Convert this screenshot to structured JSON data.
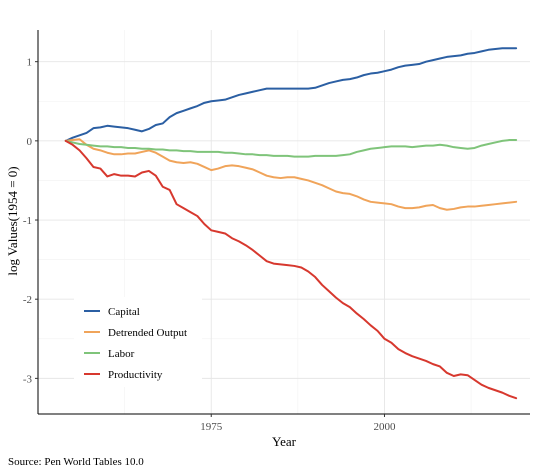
{
  "chart_data": {
    "type": "line",
    "title": "",
    "xlabel": "Year",
    "ylabel": "log Values(1954 = 0)",
    "caption": "Source: Pen World Tables 10.0",
    "xlim": [
      1950,
      2021
    ],
    "ylim": [
      -3.45,
      1.4
    ],
    "x_ticks": [
      1975,
      2000
    ],
    "y_ticks": [
      -3,
      -2,
      -1,
      0,
      1
    ],
    "grid": true,
    "legend_position": "bottom-left",
    "series": [
      {
        "name": "Capital",
        "color": "#2b5fa3",
        "x": [
          1954,
          1955,
          1956,
          1957,
          1958,
          1959,
          1960,
          1961,
          1962,
          1963,
          1964,
          1965,
          1966,
          1967,
          1968,
          1969,
          1970,
          1971,
          1972,
          1973,
          1974,
          1975,
          1976,
          1977,
          1978,
          1979,
          1980,
          1981,
          1982,
          1983,
          1984,
          1985,
          1986,
          1987,
          1988,
          1989,
          1990,
          1991,
          1992,
          1993,
          1994,
          1995,
          1996,
          1997,
          1998,
          1999,
          2000,
          2001,
          2002,
          2003,
          2004,
          2005,
          2006,
          2007,
          2008,
          2009,
          2010,
          2011,
          2012,
          2013,
          2014,
          2015,
          2016,
          2017,
          2018,
          2019
        ],
        "y": [
          0,
          0.04,
          0.07,
          0.1,
          0.16,
          0.17,
          0.19,
          0.18,
          0.17,
          0.16,
          0.14,
          0.12,
          0.15,
          0.2,
          0.22,
          0.3,
          0.35,
          0.38,
          0.41,
          0.44,
          0.48,
          0.5,
          0.51,
          0.52,
          0.55,
          0.58,
          0.6,
          0.62,
          0.64,
          0.66,
          0.66,
          0.66,
          0.66,
          0.66,
          0.66,
          0.66,
          0.67,
          0.7,
          0.73,
          0.75,
          0.77,
          0.78,
          0.8,
          0.83,
          0.85,
          0.86,
          0.88,
          0.9,
          0.93,
          0.95,
          0.96,
          0.97,
          1.0,
          1.02,
          1.04,
          1.06,
          1.07,
          1.08,
          1.1,
          1.11,
          1.13,
          1.15,
          1.16,
          1.17,
          1.17,
          1.17
        ]
      },
      {
        "name": "Detrended Output",
        "color": "#f0a45a",
        "x": [
          1954,
          1955,
          1956,
          1957,
          1958,
          1959,
          1960,
          1961,
          1962,
          1963,
          1964,
          1965,
          1966,
          1967,
          1968,
          1969,
          1970,
          1971,
          1972,
          1973,
          1974,
          1975,
          1976,
          1977,
          1978,
          1979,
          1980,
          1981,
          1982,
          1983,
          1984,
          1985,
          1986,
          1987,
          1988,
          1989,
          1990,
          1991,
          1992,
          1993,
          1994,
          1995,
          1996,
          1997,
          1998,
          1999,
          2000,
          2001,
          2002,
          2003,
          2004,
          2005,
          2006,
          2007,
          2008,
          2009,
          2010,
          2011,
          2012,
          2013,
          2014,
          2015,
          2016,
          2017,
          2018,
          2019
        ],
        "y": [
          0,
          0.01,
          0.02,
          -0.05,
          -0.1,
          -0.12,
          -0.15,
          -0.17,
          -0.17,
          -0.16,
          -0.16,
          -0.14,
          -0.12,
          -0.15,
          -0.2,
          -0.25,
          -0.27,
          -0.28,
          -0.27,
          -0.29,
          -0.33,
          -0.37,
          -0.35,
          -0.32,
          -0.31,
          -0.32,
          -0.34,
          -0.36,
          -0.4,
          -0.44,
          -0.46,
          -0.47,
          -0.46,
          -0.46,
          -0.48,
          -0.5,
          -0.53,
          -0.56,
          -0.6,
          -0.64,
          -0.66,
          -0.67,
          -0.7,
          -0.74,
          -0.77,
          -0.78,
          -0.79,
          -0.8,
          -0.83,
          -0.85,
          -0.85,
          -0.84,
          -0.82,
          -0.81,
          -0.85,
          -0.87,
          -0.86,
          -0.84,
          -0.83,
          -0.83,
          -0.82,
          -0.81,
          -0.8,
          -0.79,
          -0.78,
          -0.77
        ]
      },
      {
        "name": "Labor",
        "color": "#7fc47a",
        "x": [
          1954,
          1955,
          1956,
          1957,
          1958,
          1959,
          1960,
          1961,
          1962,
          1963,
          1964,
          1965,
          1966,
          1967,
          1968,
          1969,
          1970,
          1971,
          1972,
          1973,
          1974,
          1975,
          1976,
          1977,
          1978,
          1979,
          1980,
          1981,
          1982,
          1983,
          1984,
          1985,
          1986,
          1987,
          1988,
          1989,
          1990,
          1991,
          1992,
          1993,
          1994,
          1995,
          1996,
          1997,
          1998,
          1999,
          2000,
          2001,
          2002,
          2003,
          2004,
          2005,
          2006,
          2007,
          2008,
          2009,
          2010,
          2011,
          2012,
          2013,
          2014,
          2015,
          2016,
          2017,
          2018,
          2019
        ],
        "y": [
          0,
          -0.02,
          -0.04,
          -0.05,
          -0.06,
          -0.07,
          -0.07,
          -0.08,
          -0.08,
          -0.09,
          -0.09,
          -0.1,
          -0.1,
          -0.11,
          -0.11,
          -0.12,
          -0.12,
          -0.13,
          -0.13,
          -0.14,
          -0.14,
          -0.14,
          -0.14,
          -0.15,
          -0.15,
          -0.16,
          -0.17,
          -0.17,
          -0.18,
          -0.18,
          -0.19,
          -0.19,
          -0.19,
          -0.2,
          -0.2,
          -0.2,
          -0.19,
          -0.19,
          -0.19,
          -0.19,
          -0.18,
          -0.17,
          -0.14,
          -0.12,
          -0.1,
          -0.09,
          -0.08,
          -0.07,
          -0.07,
          -0.07,
          -0.08,
          -0.07,
          -0.06,
          -0.06,
          -0.05,
          -0.06,
          -0.08,
          -0.09,
          -0.1,
          -0.09,
          -0.06,
          -0.04,
          -0.02,
          0.0,
          0.01,
          0.01
        ]
      },
      {
        "name": "Productivity",
        "color": "#d7382e",
        "x": [
          1954,
          1955,
          1956,
          1957,
          1958,
          1959,
          1960,
          1961,
          1962,
          1963,
          1964,
          1965,
          1966,
          1967,
          1968,
          1969,
          1970,
          1971,
          1972,
          1973,
          1974,
          1975,
          1976,
          1977,
          1978,
          1979,
          1980,
          1981,
          1982,
          1983,
          1984,
          1985,
          1986,
          1987,
          1988,
          1989,
          1990,
          1991,
          1992,
          1993,
          1994,
          1995,
          1996,
          1997,
          1998,
          1999,
          2000,
          2001,
          2002,
          2003,
          2004,
          2005,
          2006,
          2007,
          2008,
          2009,
          2010,
          2011,
          2012,
          2013,
          2014,
          2015,
          2016,
          2017,
          2018,
          2019
        ],
        "y": [
          0,
          -0.05,
          -0.12,
          -0.22,
          -0.33,
          -0.35,
          -0.45,
          -0.42,
          -0.44,
          -0.44,
          -0.45,
          -0.4,
          -0.38,
          -0.44,
          -0.58,
          -0.62,
          -0.8,
          -0.85,
          -0.9,
          -0.95,
          -1.05,
          -1.13,
          -1.15,
          -1.17,
          -1.23,
          -1.27,
          -1.32,
          -1.38,
          -1.45,
          -1.52,
          -1.55,
          -1.56,
          -1.57,
          -1.58,
          -1.6,
          -1.65,
          -1.72,
          -1.82,
          -1.9,
          -1.98,
          -2.05,
          -2.1,
          -2.18,
          -2.25,
          -2.33,
          -2.4,
          -2.5,
          -2.55,
          -2.63,
          -2.68,
          -2.72,
          -2.75,
          -2.78,
          -2.82,
          -2.85,
          -2.93,
          -2.97,
          -2.95,
          -2.96,
          -3.02,
          -3.08,
          -3.12,
          -3.15,
          -3.18,
          -3.22,
          -3.25
        ]
      }
    ]
  }
}
